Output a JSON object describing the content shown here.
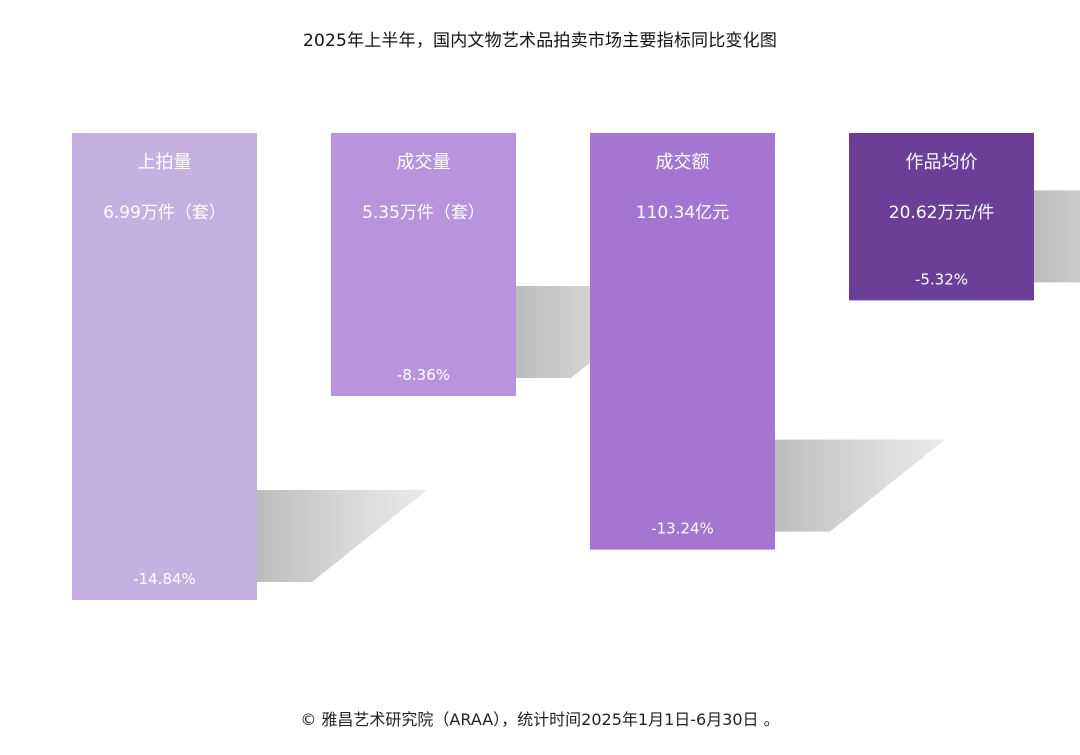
{
  "chart_data": {
    "type": "bar",
    "title": "2025年上半年，国内文物艺术品拍卖市场主要指标同比变化图",
    "categories": [
      "上拍量",
      "成交量",
      "成交额",
      "作品均价"
    ],
    "values_text": [
      "6.99万件（套）",
      "5.35万件（套）",
      "110.34亿元",
      "20.62万元/件"
    ],
    "changes": [
      -14.84,
      -8.36,
      -13.24,
      -5.32
    ],
    "change_labels": [
      "-14.84%",
      "-8.36%",
      "-13.24%",
      "-5.32%"
    ],
    "colors": [
      "#c6b0e0",
      "#b994dd",
      "#a575d2",
      "#6b3f97"
    ],
    "ylim": [
      -15,
      0
    ],
    "grid": false
  },
  "source": "© 雅昌艺术研究院（ARAA），统计时间2025年1月1日-6月30日 。"
}
